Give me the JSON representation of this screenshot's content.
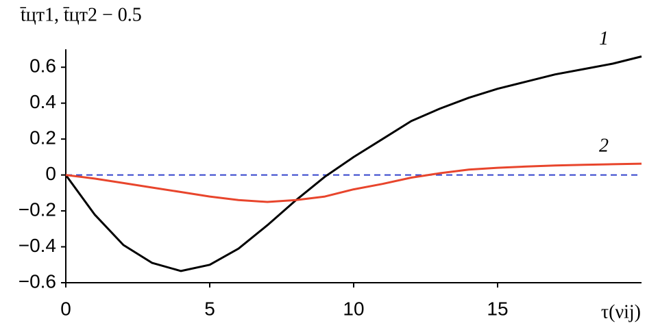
{
  "chart_data": {
    "type": "line",
    "title": "t̄цт1, t̄цт2 − 0.5",
    "x_label": "τ(νij)",
    "x": [
      0,
      1,
      2,
      3,
      4,
      5,
      6,
      7,
      8,
      9,
      10,
      11,
      12,
      13,
      14,
      15,
      16,
      17,
      18,
      19,
      20
    ],
    "series": [
      {
        "name": "1",
        "color": "#000000",
        "values": [
          0,
          -0.22,
          -0.39,
          -0.49,
          -0.535,
          -0.5,
          -0.41,
          -0.28,
          -0.14,
          -0.01,
          0.1,
          0.2,
          0.3,
          0.37,
          0.43,
          0.48,
          0.52,
          0.56,
          0.59,
          0.62,
          0.66
        ]
      },
      {
        "name": "2",
        "color": "#e8452c",
        "values": [
          0,
          -0.02,
          -0.045,
          -0.07,
          -0.095,
          -0.12,
          -0.14,
          -0.15,
          -0.14,
          -0.12,
          -0.08,
          -0.05,
          -0.015,
          0.01,
          0.03,
          0.04,
          0.047,
          0.053,
          0.057,
          0.06,
          0.063
        ]
      }
    ],
    "reference_line": {
      "value": 0,
      "color": "#3344cc"
    },
    "xlim": [
      0,
      20
    ],
    "xticks": [
      0,
      5,
      10,
      15
    ],
    "ylim": [
      -0.6,
      0.7
    ],
    "yticks": [
      {
        "value": -0.6,
        "label": "−0.6"
      },
      {
        "value": -0.4,
        "label": "−0.4"
      },
      {
        "value": -0.2,
        "label": "−0.2"
      },
      0,
      0.2,
      0.4,
      0.6
    ]
  }
}
